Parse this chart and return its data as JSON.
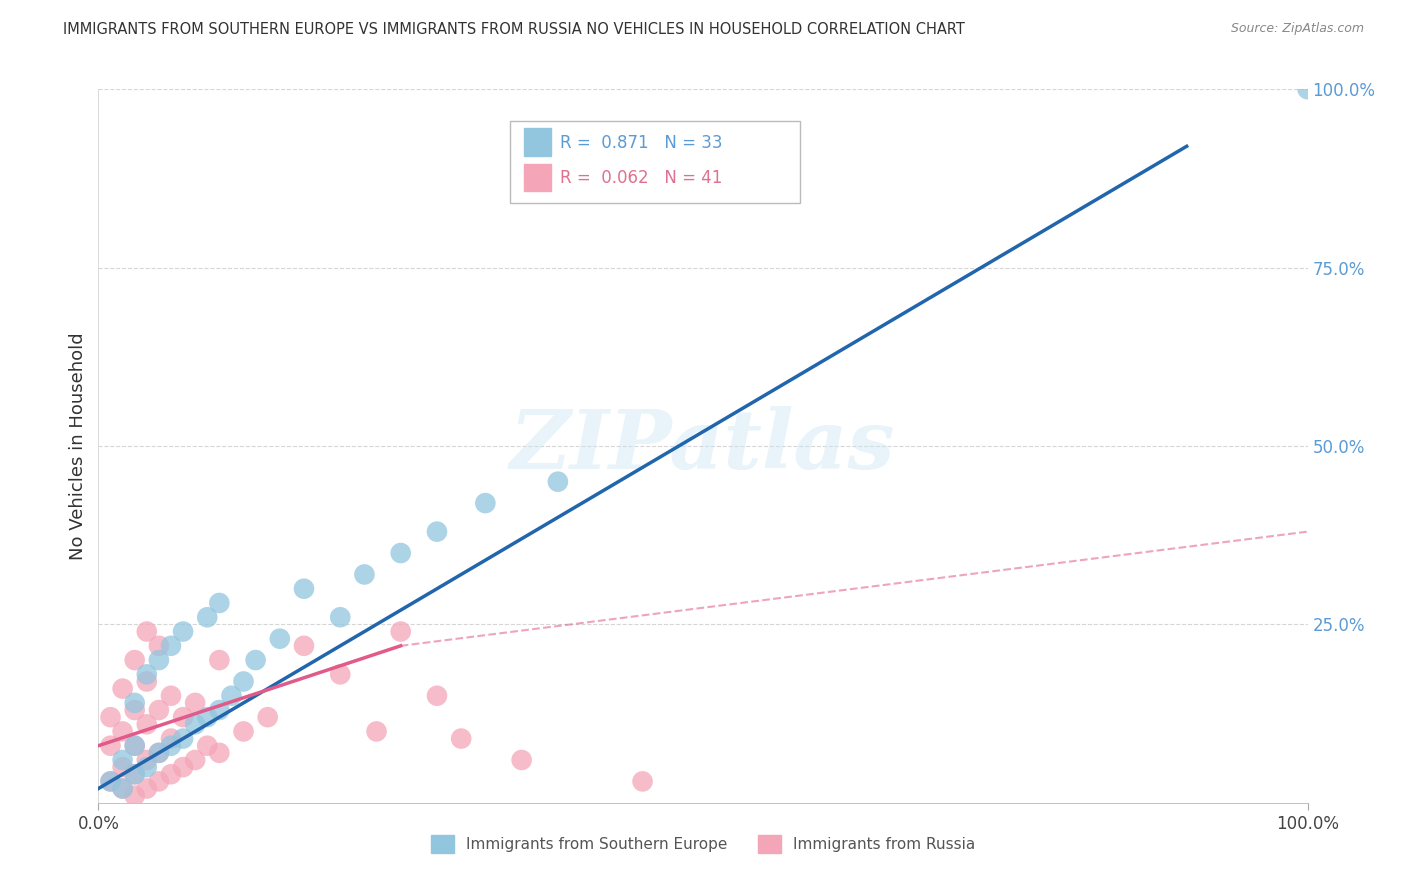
{
  "title": "IMMIGRANTS FROM SOUTHERN EUROPE VS IMMIGRANTS FROM RUSSIA NO VEHICLES IN HOUSEHOLD CORRELATION CHART",
  "source": "Source: ZipAtlas.com",
  "ylabel": "No Vehicles in Household",
  "xlim": [
    0,
    100
  ],
  "ylim": [
    0,
    100
  ],
  "legend_label1": "Immigrants from Southern Europe",
  "legend_label2": "Immigrants from Russia",
  "color_blue": "#92c5de",
  "color_pink": "#f4a6b8",
  "color_blue_line": "#2166ac",
  "color_pink_line": "#e05a8a",
  "watermark_text": "ZIPatlas",
  "background_color": "#ffffff",
  "grid_color": "#cccccc",
  "right_axis_color": "#5b9bd5",
  "blue_x": [
    1,
    2,
    2,
    3,
    3,
    3,
    4,
    4,
    5,
    5,
    6,
    6,
    7,
    7,
    8,
    9,
    9,
    10,
    10,
    11,
    12,
    13,
    15,
    17,
    20,
    22,
    25,
    28,
    32,
    38,
    100
  ],
  "blue_y": [
    3,
    2,
    6,
    4,
    8,
    14,
    5,
    18,
    7,
    20,
    8,
    22,
    9,
    24,
    11,
    12,
    26,
    13,
    28,
    15,
    17,
    20,
    23,
    30,
    26,
    32,
    35,
    38,
    42,
    45,
    100
  ],
  "pink_x": [
    1,
    1,
    1,
    2,
    2,
    2,
    2,
    3,
    3,
    3,
    3,
    3,
    4,
    4,
    4,
    4,
    4,
    5,
    5,
    5,
    5,
    6,
    6,
    6,
    7,
    7,
    8,
    8,
    9,
    10,
    10,
    12,
    14,
    17,
    20,
    23,
    25,
    28,
    30,
    35,
    45
  ],
  "pink_y": [
    3,
    8,
    12,
    2,
    5,
    10,
    16,
    1,
    4,
    8,
    13,
    20,
    2,
    6,
    11,
    17,
    24,
    3,
    7,
    13,
    22,
    4,
    9,
    15,
    5,
    12,
    6,
    14,
    8,
    7,
    20,
    10,
    12,
    22,
    18,
    10,
    24,
    15,
    9,
    6,
    3
  ],
  "blue_line_x0": 0,
  "blue_line_y0": 2,
  "blue_line_x1": 90,
  "blue_line_y1": 92,
  "pink_solid_x0": 0,
  "pink_solid_y0": 8,
  "pink_solid_x1": 25,
  "pink_solid_y1": 22,
  "pink_dash_x0": 25,
  "pink_dash_y0": 22,
  "pink_dash_x1": 100,
  "pink_dash_y1": 38
}
